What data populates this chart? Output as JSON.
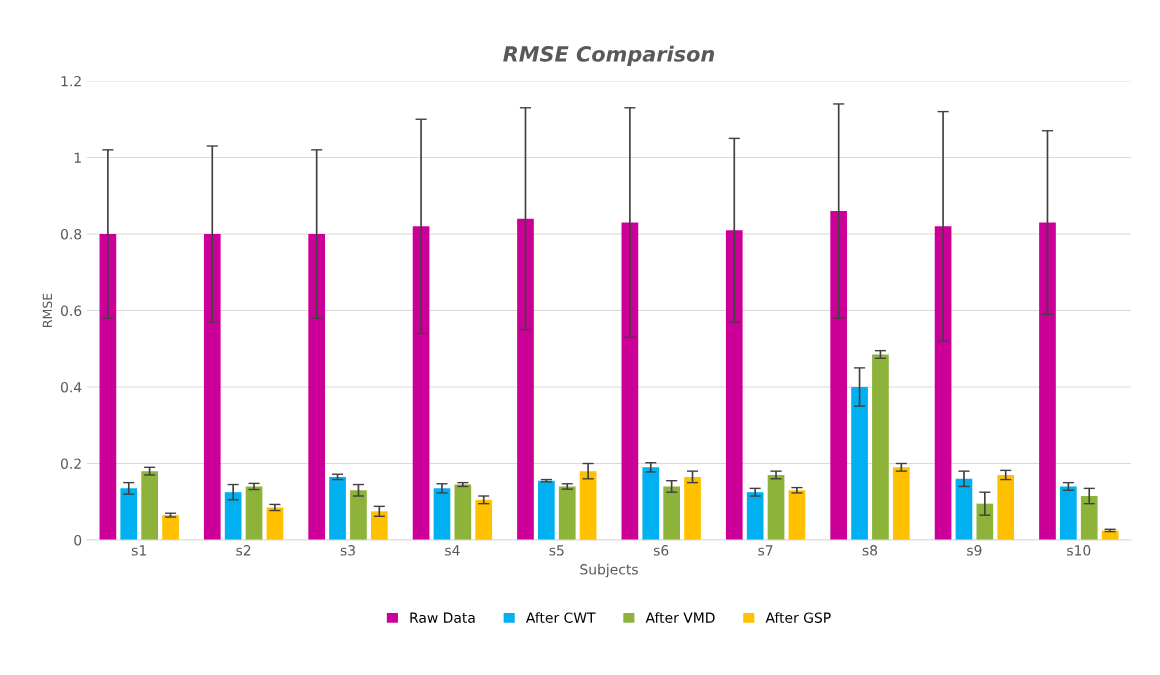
{
  "chart_data": {
    "type": "bar",
    "title": "RMSE Comparison",
    "xlabel": "Subjects",
    "ylabel": "RMSE",
    "categories": [
      "s1",
      "s2",
      "s3",
      "s4",
      "s5",
      "s6",
      "s7",
      "s8",
      "s9",
      "s10"
    ],
    "series": [
      {
        "name": "Raw Data",
        "color": "#cc0099",
        "values": [
          0.8,
          0.8,
          0.8,
          0.82,
          0.84,
          0.83,
          0.81,
          0.86,
          0.82,
          0.83
        ],
        "errors": [
          0.22,
          0.23,
          0.22,
          0.28,
          0.29,
          0.3,
          0.24,
          0.28,
          0.3,
          0.24
        ]
      },
      {
        "name": "After CWT",
        "color": "#00b0f0",
        "values": [
          0.135,
          0.125,
          0.165,
          0.135,
          0.155,
          0.19,
          0.125,
          0.4,
          0.16,
          0.14
        ],
        "errors": [
          0.015,
          0.02,
          0.007,
          0.012,
          0.003,
          0.012,
          0.01,
          0.05,
          0.02,
          0.01
        ]
      },
      {
        "name": "After VMD",
        "color": "#8db33a",
        "values": [
          0.18,
          0.14,
          0.13,
          0.145,
          0.14,
          0.14,
          0.17,
          0.485,
          0.095,
          0.115
        ],
        "errors": [
          0.01,
          0.008,
          0.015,
          0.005,
          0.007,
          0.015,
          0.01,
          0.01,
          0.03,
          0.02
        ]
      },
      {
        "name": "After GSP",
        "color": "#ffc000",
        "values": [
          0.065,
          0.085,
          0.075,
          0.105,
          0.18,
          0.165,
          0.13,
          0.19,
          0.17,
          0.025
        ],
        "errors": [
          0.005,
          0.008,
          0.013,
          0.01,
          0.02,
          0.015,
          0.007,
          0.01,
          0.012,
          0.003
        ]
      }
    ],
    "ylim": [
      0,
      1.2
    ],
    "yticks": [
      0,
      0.2,
      0.4,
      0.6,
      0.8,
      1,
      1.2
    ],
    "grid": "y",
    "legend": "bottom"
  }
}
